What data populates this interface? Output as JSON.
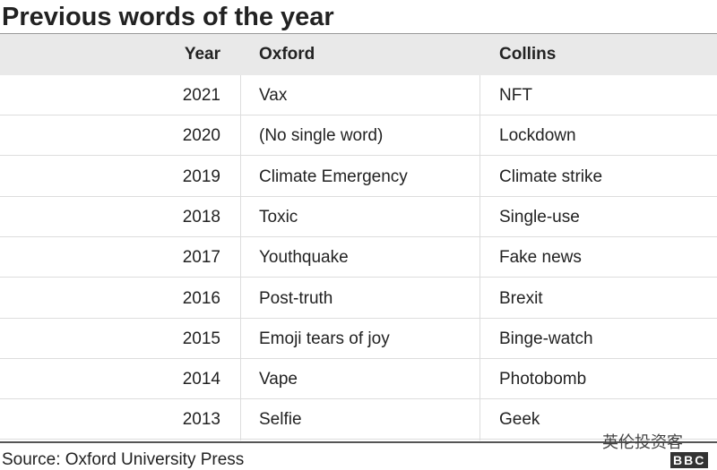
{
  "header": {
    "title": "Previous words of the year"
  },
  "table": {
    "columns": [
      "Year",
      "Oxford",
      "Collins"
    ],
    "rows": [
      [
        "2021",
        "Vax",
        "NFT"
      ],
      [
        "2020",
        "(No single word)",
        "Lockdown"
      ],
      [
        "2019",
        "Climate Emergency",
        "Climate strike"
      ],
      [
        "2018",
        "Toxic",
        "Single-use"
      ],
      [
        "2017",
        "Youthquake",
        "Fake news"
      ],
      [
        "2016",
        "Post-truth",
        "Brexit"
      ],
      [
        "2015",
        "Emoji tears of joy",
        "Binge-watch"
      ],
      [
        "2014",
        "Vape",
        "Photobomb"
      ],
      [
        "2013",
        "Selfie",
        "Geek"
      ]
    ]
  },
  "footer": {
    "source": "Source: Oxford University Press",
    "watermark": "英伦投资客",
    "logo": "BBC"
  }
}
